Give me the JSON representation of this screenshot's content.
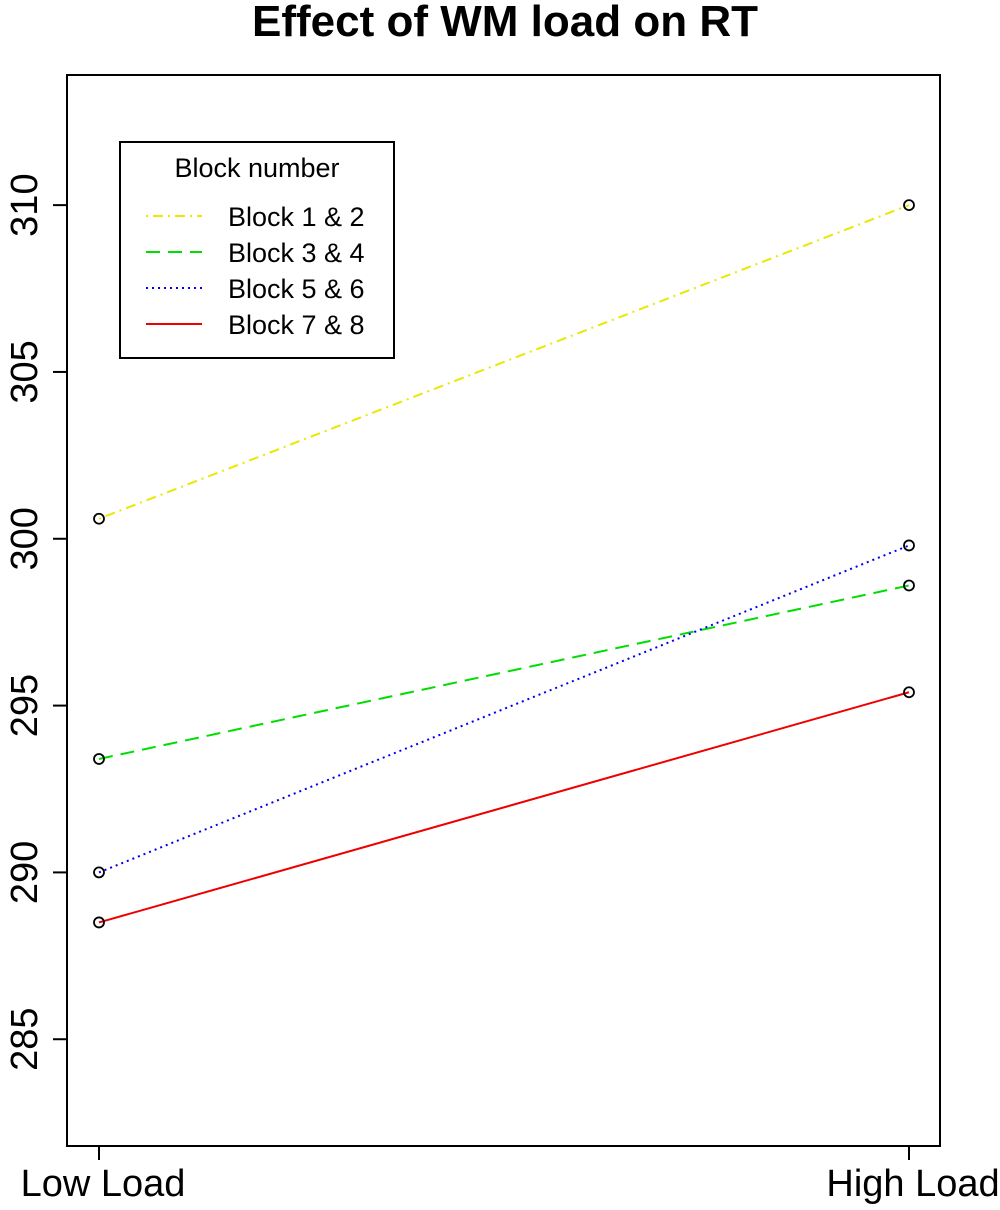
{
  "chart_data": {
    "type": "line",
    "title": "Effect of WM load on RT",
    "xlabel": "",
    "ylabel": "",
    "categories": [
      "Low Load",
      "High Load"
    ],
    "ylim": [
      281.8,
      313.9
    ],
    "y_ticks": [
      285,
      290,
      295,
      300,
      305,
      310
    ],
    "grid": false,
    "legend": {
      "title": "Block number",
      "position": "top-left"
    },
    "series": [
      {
        "name": "Block 1 & 2",
        "values": [
          300.6,
          310.0
        ],
        "color": "#e8e800",
        "dash": "dotdash"
      },
      {
        "name": "Block 3 & 4",
        "values": [
          293.4,
          298.6
        ],
        "color": "#00dd00",
        "dash": "dashed"
      },
      {
        "name": "Block 5 & 6",
        "values": [
          290.0,
          299.8
        ],
        "color": "#0000ee",
        "dash": "dotted"
      },
      {
        "name": "Block 7 & 8",
        "values": [
          288.5,
          295.4
        ],
        "color": "#ee0000",
        "dash": "solid"
      }
    ]
  }
}
